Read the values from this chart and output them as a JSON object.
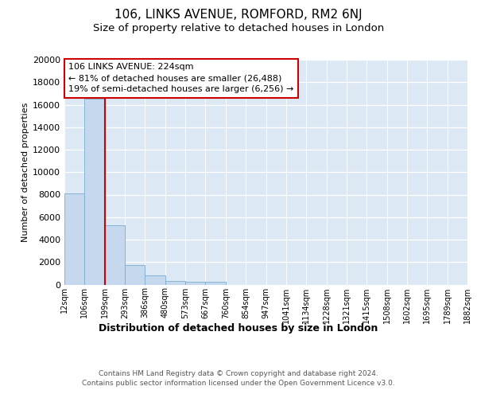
{
  "title": "106, LINKS AVENUE, ROMFORD, RM2 6NJ",
  "subtitle": "Size of property relative to detached houses in London",
  "xlabel": "Distribution of detached houses by size in London",
  "ylabel": "Number of detached properties",
  "bins": [
    "12sqm",
    "106sqm",
    "199sqm",
    "293sqm",
    "386sqm",
    "480sqm",
    "573sqm",
    "667sqm",
    "760sqm",
    "854sqm",
    "947sqm",
    "1041sqm",
    "1134sqm",
    "1228sqm",
    "1321sqm",
    "1415sqm",
    "1508sqm",
    "1602sqm",
    "1695sqm",
    "1789sqm",
    "1882sqm"
  ],
  "bar_heights": [
    8100,
    16500,
    5300,
    1750,
    800,
    300,
    250,
    250,
    0,
    0,
    0,
    0,
    0,
    0,
    0,
    0,
    0,
    0,
    0,
    0
  ],
  "bar_color": "#c5d8ee",
  "bar_edge_color": "#7aadcf",
  "vline_x": 2,
  "vline_color": "#cc0000",
  "annotation_line1": "106 LINKS AVENUE: 224sqm",
  "annotation_line2": "← 81% of detached houses are smaller (26,488)",
  "annotation_line3": "19% of semi-detached houses are larger (6,256) →",
  "annotation_box_facecolor": "#ffffff",
  "annotation_box_edgecolor": "#cc0000",
  "ylim": [
    0,
    20000
  ],
  "yticks": [
    0,
    2000,
    4000,
    6000,
    8000,
    10000,
    12000,
    14000,
    16000,
    18000,
    20000
  ],
  "plot_bg_color": "#dce9f5",
  "fig_bg_color": "#ffffff",
  "footer": "Contains HM Land Registry data © Crown copyright and database right 2024.\nContains public sector information licensed under the Open Government Licence v3.0.",
  "title_fontsize": 11,
  "subtitle_fontsize": 9.5,
  "ylabel_fontsize": 8,
  "xlabel_fontsize": 9,
  "ytick_fontsize": 8,
  "xtick_fontsize": 7,
  "annot_fontsize": 8,
  "footer_fontsize": 6.5
}
